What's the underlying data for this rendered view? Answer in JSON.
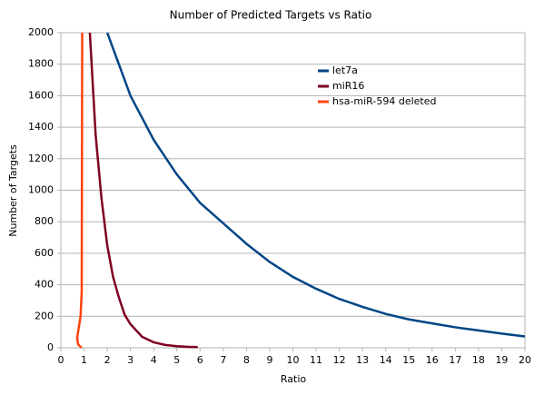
{
  "chart_data": {
    "type": "line",
    "title": "Number of Predicted Targets vs Ratio",
    "x_label": "Ratio",
    "y_label": "Number of Targets",
    "xlim": [
      0,
      20
    ],
    "xticks": [
      0,
      1,
      2,
      3,
      4,
      5,
      6,
      7,
      8,
      9,
      10,
      11,
      12,
      13,
      14,
      15,
      16,
      17,
      18,
      19,
      20
    ],
    "ylim": [
      0,
      2000
    ],
    "yticks": [
      0,
      200,
      400,
      600,
      800,
      1000,
      1200,
      1400,
      1600,
      1800,
      2000
    ],
    "grid": true,
    "legend": "upper-right",
    "series": [
      {
        "name": "let7a",
        "color": "#004586",
        "x": [
          2,
          3,
          4,
          5,
          6,
          7,
          8,
          9,
          10,
          11,
          12,
          13,
          14,
          15,
          16,
          17,
          18,
          19,
          20
        ],
        "values": [
          2000,
          1600,
          1320,
          1100,
          920,
          790,
          660,
          545,
          450,
          375,
          310,
          260,
          215,
          180,
          155,
          130,
          110,
          90,
          72
        ]
      },
      {
        "name": "miR16",
        "color": "#7e0021",
        "x": [
          1.25,
          1.5,
          1.75,
          2,
          2.25,
          2.5,
          2.75,
          3,
          3.5,
          4,
          4.5,
          5,
          5.5,
          5.9
        ],
        "values": [
          2000,
          1350,
          950,
          650,
          450,
          320,
          210,
          150,
          70,
          35,
          18,
          10,
          6,
          4
        ]
      },
      {
        "name": "hsa-miR-594 deleted",
        "color": "#ff420e",
        "x": [
          0.92,
          0.9,
          0.85,
          0.7,
          0.75,
          0.9
        ],
        "values": [
          2000,
          360,
          200,
          60,
          20,
          0
        ]
      }
    ]
  }
}
